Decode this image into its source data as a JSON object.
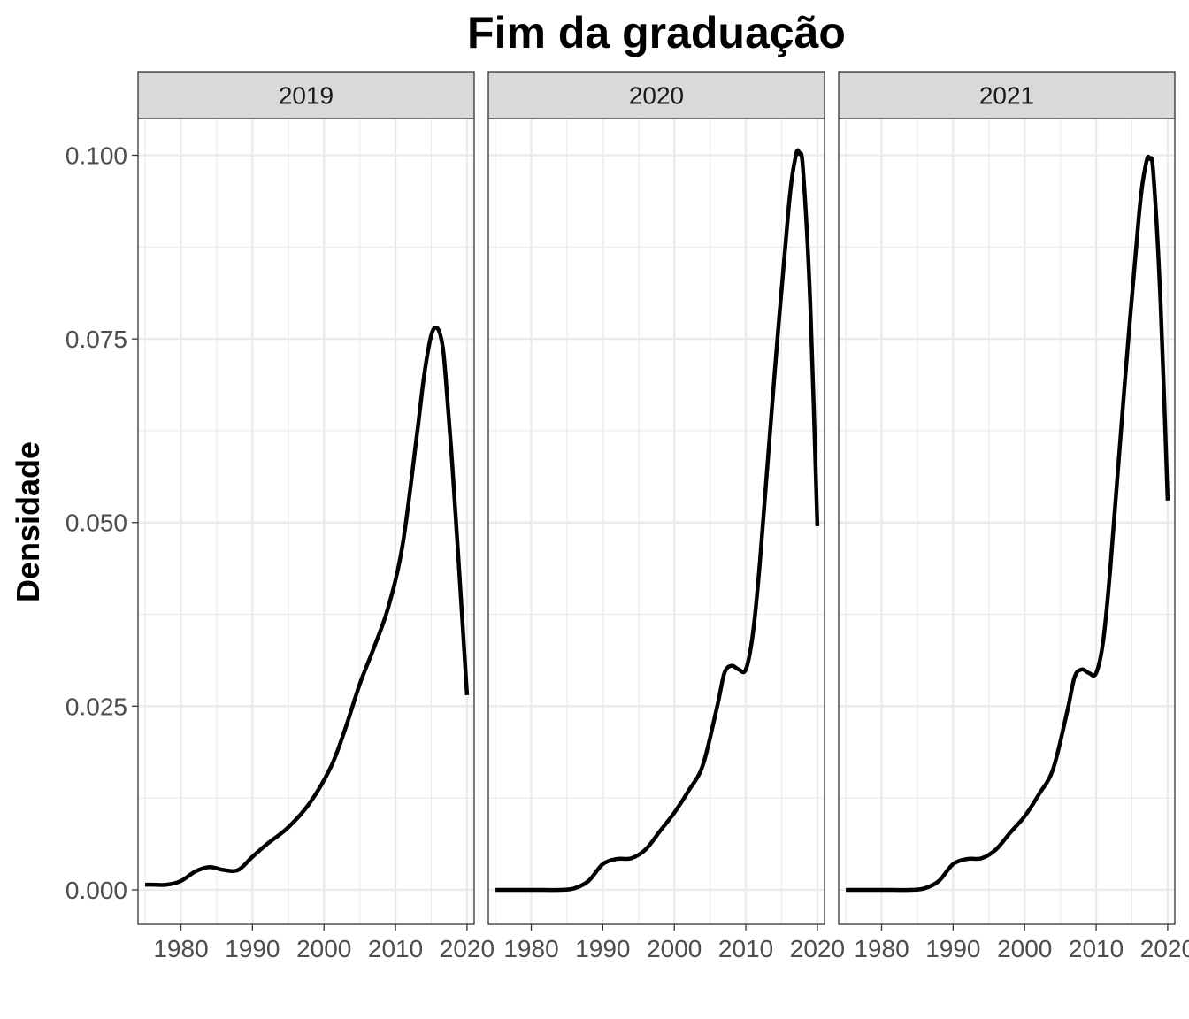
{
  "chart_data": {
    "type": "line",
    "title": "Fim da graduação",
    "xlabel": "",
    "ylabel": "Densidade",
    "xlim": [
      1974,
      2021
    ],
    "ylim": [
      -0.0047,
      0.105
    ],
    "x_ticks": [
      1980,
      1990,
      2000,
      2010,
      2020
    ],
    "x_tick_labels": [
      "1980",
      "1990",
      "2000",
      "2010",
      "2020"
    ],
    "y_ticks": [
      0.0,
      0.025,
      0.05,
      0.075,
      0.1
    ],
    "y_tick_labels": [
      "0.000",
      "0.025",
      "0.050",
      "0.075",
      "0.100"
    ],
    "grid": true,
    "legend": "none",
    "line_color": "#000000",
    "panels": [
      {
        "label": "2019",
        "x": [
          1975,
          1976,
          1978,
          1980,
          1982,
          1984,
          1986,
          1988,
          1990,
          1992,
          1995,
          1998,
          2001,
          2003,
          2005,
          2007,
          2009,
          2011,
          2013,
          2014,
          2015,
          2015.8,
          2016.5,
          2017,
          2018,
          2019,
          2020
        ],
        "y": [
          0.0007,
          0.0007,
          0.0007,
          0.0012,
          0.0025,
          0.0031,
          0.0027,
          0.0027,
          0.0045,
          0.0062,
          0.0085,
          0.0118,
          0.0168,
          0.022,
          0.028,
          0.033,
          0.0385,
          0.047,
          0.062,
          0.07,
          0.0755,
          0.0765,
          0.0745,
          0.07,
          0.057,
          0.042,
          0.0265
        ]
      },
      {
        "label": "2020",
        "x": [
          1975,
          1980,
          1984,
          1986,
          1988,
          1990,
          1992,
          1994,
          1996,
          1998,
          2000,
          2002,
          2004,
          2006,
          2007,
          2008,
          2009,
          2010,
          2011,
          2012,
          2014,
          2016,
          2017,
          2017.5,
          2018,
          2019,
          2020
        ],
        "y": [
          0.0,
          0.0,
          0.0,
          0.0002,
          0.0012,
          0.0035,
          0.0042,
          0.0043,
          0.0055,
          0.008,
          0.0105,
          0.0135,
          0.017,
          0.025,
          0.0295,
          0.0305,
          0.03,
          0.03,
          0.035,
          0.045,
          0.07,
          0.093,
          0.1,
          0.1002,
          0.098,
          0.08,
          0.0495
        ]
      },
      {
        "label": "2021",
        "x": [
          1975,
          1980,
          1984,
          1986,
          1988,
          1990,
          1992,
          1994,
          1996,
          1998,
          2000,
          2002,
          2004,
          2006,
          2007,
          2008,
          2009,
          2010,
          2011,
          2012,
          2014,
          2016,
          2017,
          2017.5,
          2018,
          2019,
          2020
        ],
        "y": [
          0.0,
          0.0,
          0.0,
          0.0002,
          0.0012,
          0.0035,
          0.0042,
          0.0043,
          0.0055,
          0.0078,
          0.01,
          0.013,
          0.0165,
          0.0245,
          0.029,
          0.03,
          0.0295,
          0.0295,
          0.034,
          0.044,
          0.069,
          0.092,
          0.099,
          0.0995,
          0.0975,
          0.08,
          0.053
        ]
      }
    ]
  }
}
